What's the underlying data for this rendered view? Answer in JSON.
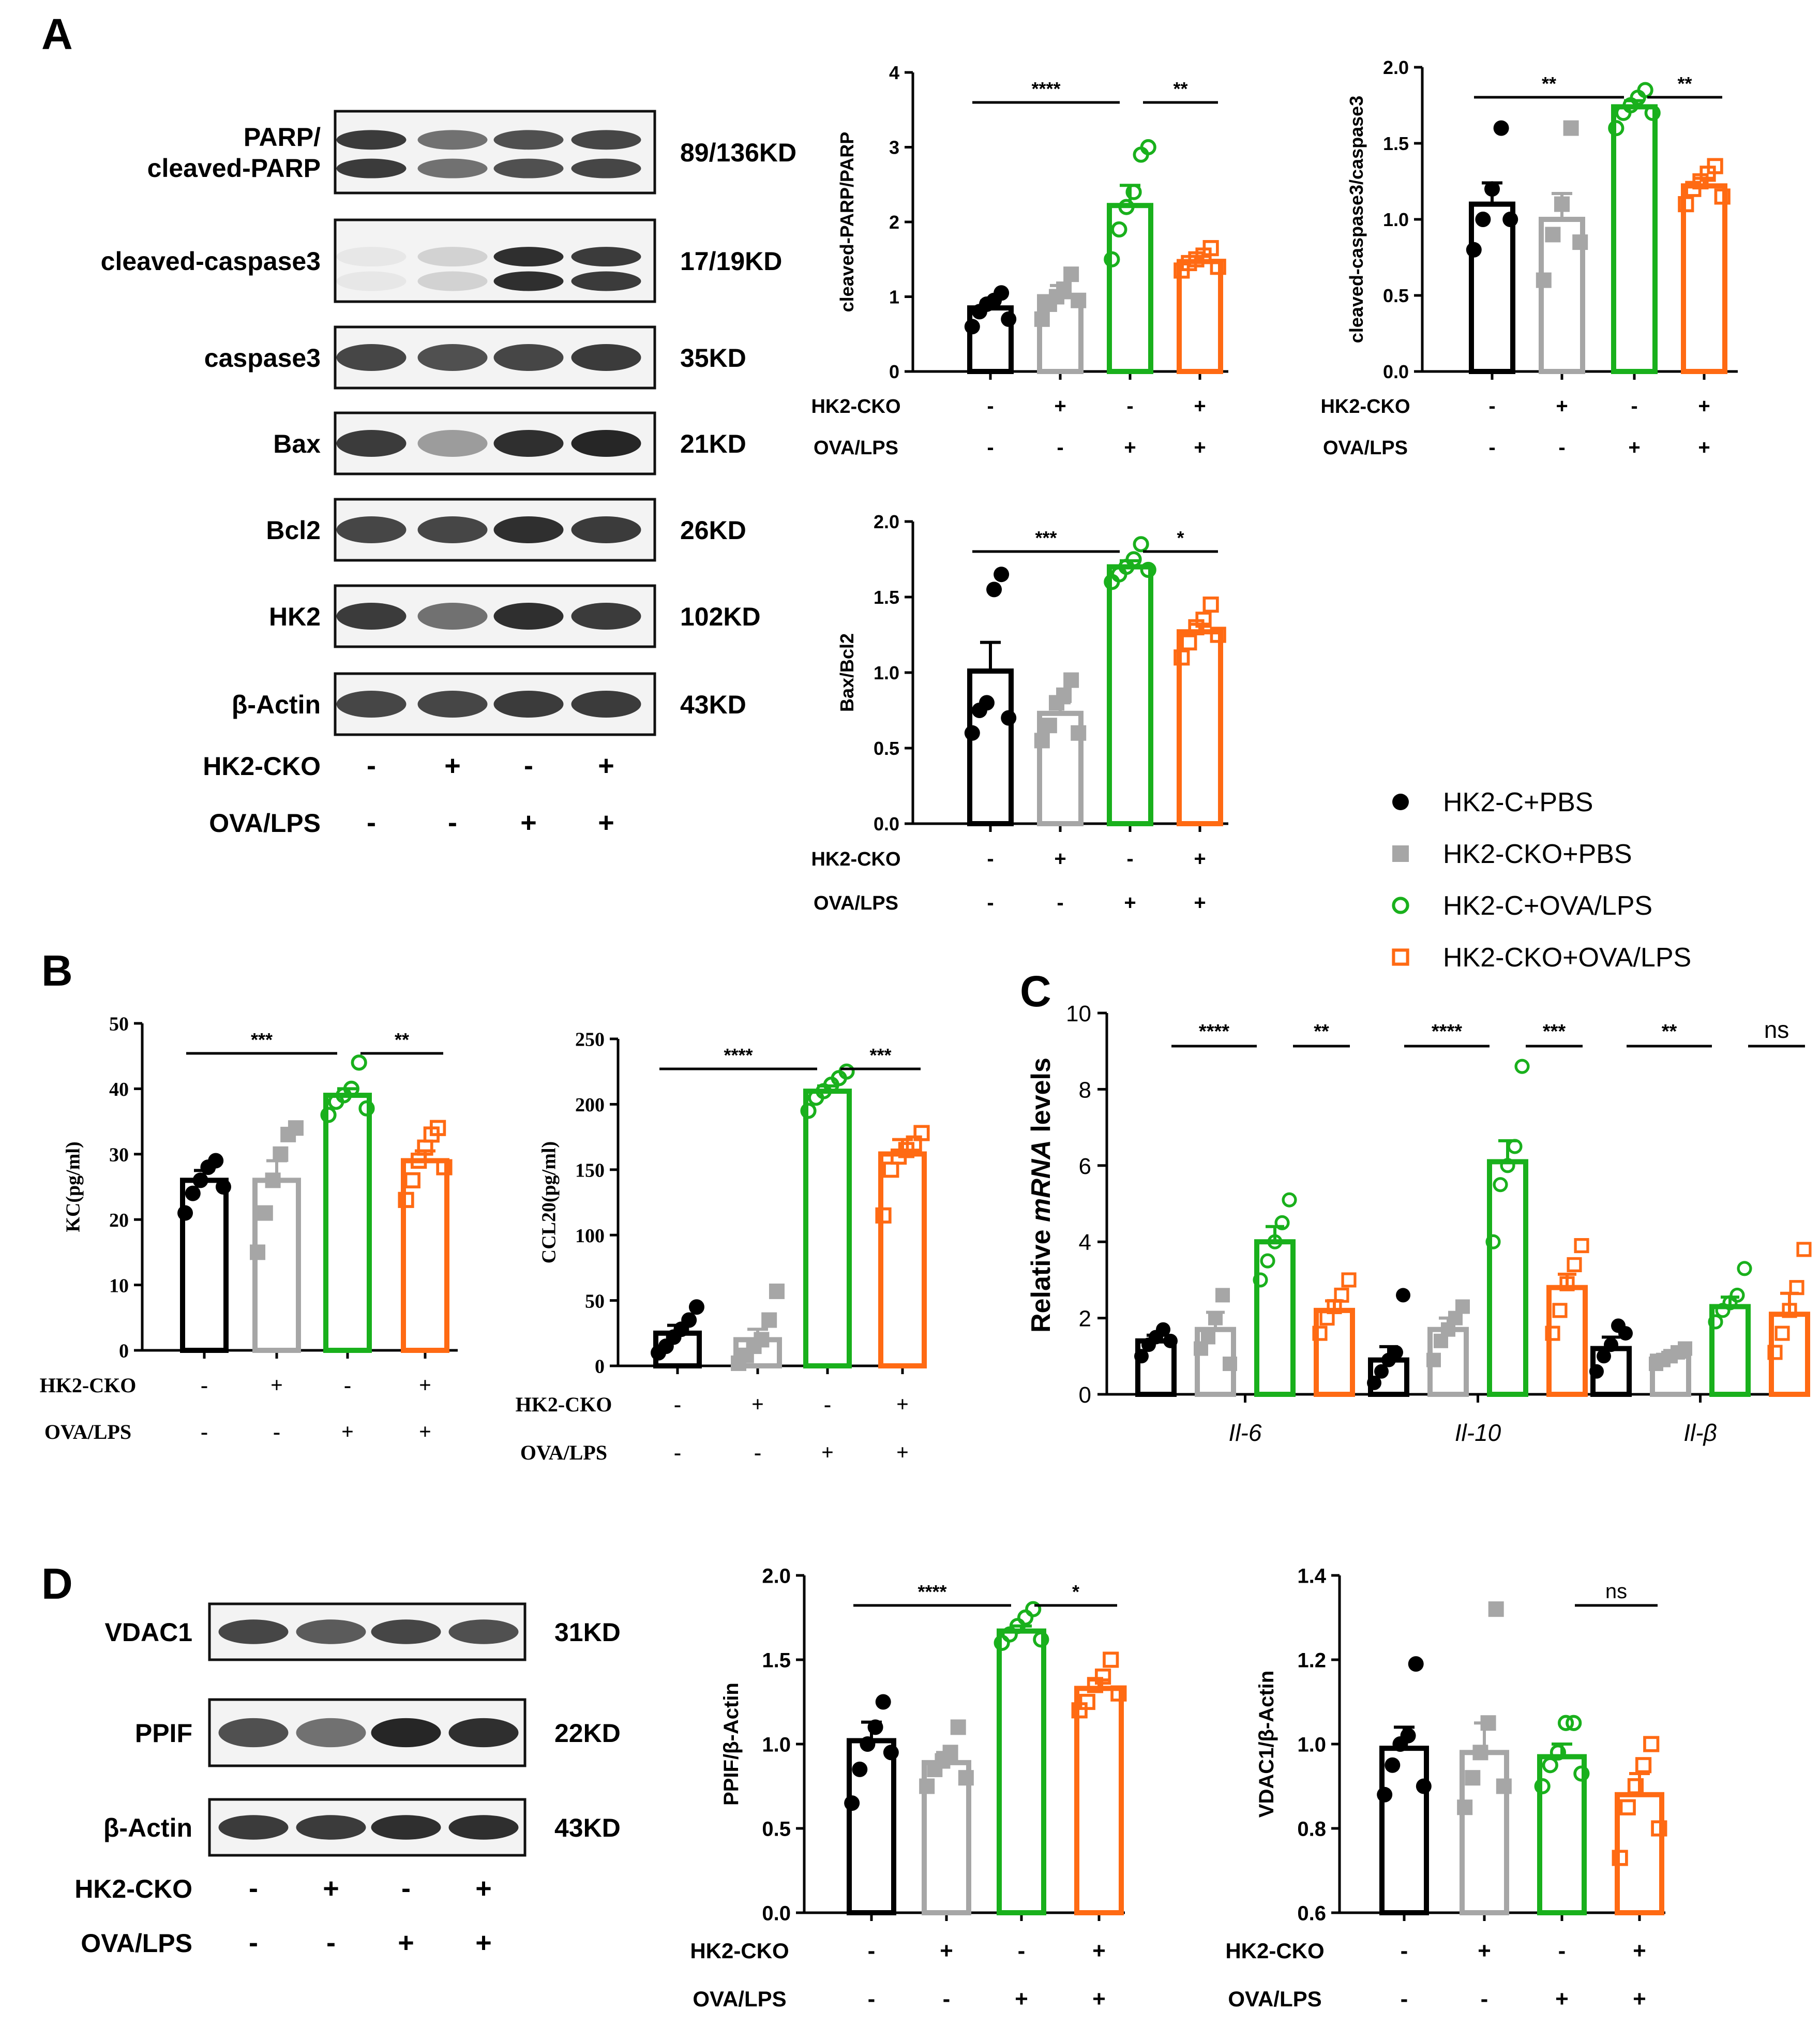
{
  "panel_labels": {
    "A": "A",
    "B": "B",
    "C": "C",
    "D": "D"
  },
  "legend": {
    "entries": [
      {
        "label": "HK2-C+PBS",
        "color": "#000000",
        "marker": "filled-circle"
      },
      {
        "label": "HK2-CKO+PBS",
        "color": "#a6a6a6",
        "marker": "filled-square"
      },
      {
        "label": "HK2-C+OVA/LPS",
        "color": "#19b01c",
        "marker": "open-circle"
      },
      {
        "label": "HK2-CKO+OVA/LPS",
        "color": "#ff6a13",
        "marker": "open-square"
      }
    ]
  },
  "condition_rows": {
    "hk2_label": "HK2-CKO",
    "ova_label": "OVA/LPS",
    "hk2_signs": [
      "-",
      "+",
      "-",
      "+"
    ],
    "ova_signs": [
      "-",
      "-",
      "+",
      "+"
    ]
  },
  "blots": {
    "panelA": [
      {
        "name": "PARP/",
        "name2": "cleaved-PARP",
        "kd": "89/136KD"
      },
      {
        "name": "cleaved-caspase3",
        "kd": "17/19KD"
      },
      {
        "name": "caspase3",
        "kd": "35KD"
      },
      {
        "name": "Bax",
        "kd": "21KD"
      },
      {
        "name": "Bcl2",
        "kd": "26KD"
      },
      {
        "name": "HK2",
        "kd": "102KD"
      },
      {
        "name": "β-Actin",
        "kd": "43KD"
      }
    ],
    "panelD": [
      {
        "name": "VDAC1",
        "kd": "31KD"
      },
      {
        "name": "PPIF",
        "kd": "22KD"
      },
      {
        "name": "β-Actin",
        "kd": "43KD"
      }
    ]
  },
  "chart_data": [
    {
      "id": "parp",
      "type": "bar",
      "ylabel": "cleaved-PARP/PARP",
      "ylim": [
        0,
        4
      ],
      "yticks": [
        "0",
        "1",
        "2",
        "3",
        "4"
      ],
      "categories": [
        "HK2-C+PBS",
        "HK2-CKO+PBS",
        "HK2-C+OVA/LPS",
        "HK2-CKO+OVA/LPS"
      ],
      "values": [
        0.85,
        1.0,
        2.22,
        1.47
      ],
      "sem": [
        0.09,
        0.15,
        0.27,
        0.07
      ],
      "points": [
        [
          0.6,
          0.8,
          0.9,
          0.95,
          1.05,
          0.7
        ],
        [
          0.7,
          0.9,
          1.0,
          1.1,
          1.3,
          0.95
        ],
        [
          1.5,
          1.9,
          2.2,
          2.4,
          2.9,
          3.0
        ],
        [
          1.35,
          1.45,
          1.5,
          1.55,
          1.65,
          1.4
        ]
      ],
      "significance": [
        {
          "from": 0,
          "to": 2,
          "label": "****"
        },
        {
          "from": 2,
          "to": 3,
          "label": "**"
        }
      ]
    },
    {
      "id": "casp",
      "type": "bar",
      "ylabel": "cleaved-caspase3/caspase3",
      "ylim": [
        0,
        2
      ],
      "yticks": [
        "0.0",
        "0.5",
        "1.0",
        "1.5",
        "2.0"
      ],
      "categories": [
        "HK2-C+PBS",
        "HK2-CKO+PBS",
        "HK2-C+OVA/LPS",
        "HK2-CKO+OVA/LPS"
      ],
      "values": [
        1.1,
        1.0,
        1.74,
        1.22
      ],
      "sem": [
        0.14,
        0.17,
        0.04,
        0.05
      ],
      "points": [
        [
          0.8,
          1.0,
          1.2,
          1.6,
          1.0
        ],
        [
          0.6,
          0.9,
          1.1,
          1.6,
          0.85
        ],
        [
          1.6,
          1.7,
          1.75,
          1.8,
          1.85,
          1.7
        ],
        [
          1.1,
          1.2,
          1.25,
          1.3,
          1.35,
          1.15
        ]
      ],
      "significance": [
        {
          "from": 0,
          "to": 2,
          "label": "**"
        },
        {
          "from": 2,
          "to": 3,
          "label": "**"
        }
      ]
    },
    {
      "id": "bax",
      "type": "bar",
      "ylabel": "Bax/Bcl2",
      "ylim": [
        0,
        2
      ],
      "yticks": [
        "0.0",
        "0.5",
        "1.0",
        "1.5",
        "2.0"
      ],
      "categories": [
        "HK2-C+PBS",
        "HK2-CKO+PBS",
        "HK2-C+OVA/LPS",
        "HK2-CKO+OVA/LPS"
      ],
      "values": [
        1.01,
        0.73,
        1.7,
        1.27
      ],
      "sem": [
        0.19,
        0.07,
        0.04,
        0.05
      ],
      "points": [
        [
          0.6,
          0.75,
          0.8,
          1.55,
          1.65,
          0.7
        ],
        [
          0.55,
          0.65,
          0.8,
          0.85,
          0.95,
          0.6
        ],
        [
          1.6,
          1.65,
          1.7,
          1.75,
          1.85,
          1.68
        ],
        [
          1.1,
          1.2,
          1.3,
          1.35,
          1.45,
          1.25
        ]
      ],
      "significance": [
        {
          "from": 0,
          "to": 2,
          "label": "***"
        },
        {
          "from": 2,
          "to": 3,
          "label": "*"
        }
      ]
    },
    {
      "id": "kc",
      "type": "bar",
      "ylabel": "KC(pg/ml)",
      "ylim": [
        0,
        50
      ],
      "yticks": [
        "0",
        "10",
        "20",
        "30",
        "40",
        "50"
      ],
      "categories": [
        "HK2-C+PBS",
        "HK2-CKO+PBS",
        "HK2-C+OVA/LPS",
        "HK2-CKO+OVA/LPS"
      ],
      "values": [
        26,
        26,
        39,
        29
      ],
      "sem": [
        1.5,
        3,
        1,
        1.5
      ],
      "points": [
        [
          21,
          24,
          26,
          28,
          29,
          25
        ],
        [
          15,
          21,
          26,
          30,
          33,
          34
        ],
        [
          36,
          38,
          39,
          40,
          44,
          37
        ],
        [
          23,
          26,
          29,
          31,
          33,
          34,
          28
        ]
      ],
      "significance": [
        {
          "from": 0,
          "to": 2,
          "label": "***"
        },
        {
          "from": 2,
          "to": 3,
          "label": "**"
        }
      ]
    },
    {
      "id": "ccl20",
      "type": "bar",
      "ylabel": "CCL20(pg/ml)",
      "ylim": [
        0,
        250
      ],
      "yticks": [
        "0",
        "50",
        "100",
        "150",
        "200",
        "250"
      ],
      "categories": [
        "HK2-C+PBS",
        "HK2-CKO+PBS",
        "HK2-C+OVA/LPS",
        "HK2-CKO+OVA/LPS"
      ],
      "values": [
        25,
        20,
        210,
        162
      ],
      "sem": [
        6,
        8,
        4,
        11
      ],
      "points": [
        [
          10,
          15,
          22,
          28,
          35,
          45
        ],
        [
          2,
          8,
          15,
          20,
          35,
          57
        ],
        [
          195,
          205,
          210,
          215,
          220,
          225
        ],
        [
          115,
          150,
          160,
          165,
          170,
          178
        ]
      ],
      "significance": [
        {
          "from": 0,
          "to": 2,
          "label": "****"
        },
        {
          "from": 2,
          "to": 3,
          "label": "***"
        }
      ]
    },
    {
      "id": "mrna",
      "type": "bar",
      "ylabel_pre": "Relative ",
      "ylabel_italic": "mRNA",
      "ylabel_post": " levels",
      "ylim": [
        0,
        10
      ],
      "yticks": [
        "0",
        "2",
        "4",
        "6",
        "8",
        "10"
      ],
      "groups": [
        "Il-6",
        "Il-10",
        "Il-β"
      ],
      "series": [
        {
          "name": "HK2-C+PBS",
          "values": [
            1.4,
            0.9,
            1.2
          ],
          "sem": [
            0.15,
            0.35,
            0.3
          ]
        },
        {
          "name": "HK2-CKO+PBS",
          "values": [
            1.7,
            1.7,
            1.0
          ],
          "sem": [
            0.45,
            0.3,
            0.1
          ]
        },
        {
          "name": "HK2-C+OVA/LPS",
          "values": [
            4.0,
            6.1,
            2.3
          ],
          "sem": [
            0.4,
            0.55,
            0.25
          ]
        },
        {
          "name": "HK2-CKO+OVA/LPS",
          "values": [
            2.2,
            2.8,
            2.1
          ],
          "sem": [
            0.25,
            0.35,
            0.55
          ]
        }
      ],
      "points": [
        [
          [
            1.0,
            1.3,
            1.5,
            1.7,
            1.4
          ],
          [
            1.2,
            1.5,
            2.0,
            2.6,
            0.8
          ],
          [
            3.0,
            3.5,
            4.0,
            4.5,
            5.1
          ],
          [
            1.6,
            2.0,
            2.3,
            2.6,
            3.0
          ]
        ],
        [
          [
            0.3,
            0.6,
            0.9,
            1.1,
            2.6
          ],
          [
            0.9,
            1.4,
            1.7,
            2.0,
            2.3
          ],
          [
            4.0,
            5.5,
            6.0,
            6.5,
            8.6
          ],
          [
            1.6,
            2.2,
            2.9,
            3.4,
            3.9
          ]
        ],
        [
          [
            0.6,
            1.0,
            1.3,
            1.8,
            1.6
          ],
          [
            0.8,
            0.9,
            1.0,
            1.1,
            1.2
          ],
          [
            1.9,
            2.2,
            2.4,
            2.6,
            3.3
          ],
          [
            1.1,
            1.6,
            2.2,
            2.8,
            3.8
          ]
        ]
      ],
      "significance": [
        {
          "group": 0,
          "from": 0,
          "to": 2,
          "label": "****"
        },
        {
          "group": 0,
          "from": 2,
          "to": 3,
          "label": "**"
        },
        {
          "group": 1,
          "from": 0,
          "to": 2,
          "label": "****"
        },
        {
          "group": 1,
          "from": 2,
          "to": 3,
          "label": "***"
        },
        {
          "group": 2,
          "from": 0,
          "to": 2,
          "label": "**"
        },
        {
          "group": 2,
          "from": 2,
          "to": 3,
          "label": "ns"
        }
      ]
    },
    {
      "id": "ppif",
      "type": "bar",
      "ylabel": "PPIF/β-Actin",
      "ylim": [
        0,
        2
      ],
      "yticks": [
        "0.0",
        "0.5",
        "1.0",
        "1.5",
        "2.0"
      ],
      "categories": [
        "HK2-C+PBS",
        "HK2-CKO+PBS",
        "HK2-C+OVA/LPS",
        "HK2-CKO+OVA/LPS"
      ],
      "values": [
        1.02,
        0.89,
        1.67,
        1.33
      ],
      "sem": [
        0.11,
        0.06,
        0.03,
        0.05
      ],
      "points": [
        [
          0.65,
          0.85,
          1.0,
          1.1,
          1.25,
          0.95
        ],
        [
          0.75,
          0.85,
          0.9,
          0.95,
          1.1,
          0.8
        ],
        [
          1.6,
          1.65,
          1.7,
          1.75,
          1.8,
          1.62
        ],
        [
          1.2,
          1.25,
          1.35,
          1.4,
          1.5,
          1.3
        ]
      ],
      "significance": [
        {
          "from": 0,
          "to": 2,
          "label": "****"
        },
        {
          "from": 2,
          "to": 3,
          "label": "*"
        }
      ]
    },
    {
      "id": "vdac",
      "type": "bar",
      "ylabel": "VDAC1/β-Actin",
      "ylim": [
        0.6,
        1.4
      ],
      "yticks": [
        "0.6",
        "0.8",
        "1.0",
        "1.2",
        "1.4"
      ],
      "categories": [
        "HK2-C+PBS",
        "HK2-CKO+PBS",
        "HK2-C+OVA/LPS",
        "HK2-CKO+OVA/LPS"
      ],
      "values": [
        0.99,
        0.98,
        0.97,
        0.88
      ],
      "sem": [
        0.05,
        0.07,
        0.03,
        0.05
      ],
      "points": [
        [
          0.88,
          0.95,
          1.0,
          1.02,
          1.19,
          0.9
        ],
        [
          0.85,
          0.92,
          0.98,
          1.05,
          1.32,
          0.9
        ],
        [
          0.9,
          0.95,
          0.98,
          1.05,
          1.05,
          0.93
        ],
        [
          0.73,
          0.85,
          0.9,
          0.95,
          1.0,
          0.8
        ]
      ],
      "significance": [
        {
          "from": 2,
          "to": 3,
          "label": "ns"
        }
      ]
    }
  ]
}
